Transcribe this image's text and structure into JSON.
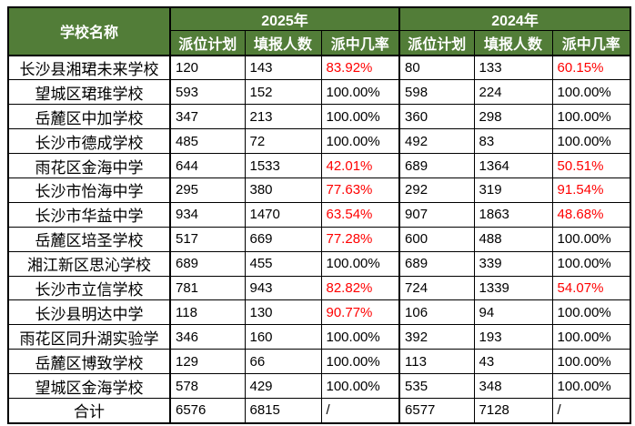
{
  "colors": {
    "header_bg": "#527d38",
    "header_text": "#ffffff",
    "highlight_red": "#ff0000",
    "cell_text": "#000000",
    "border": "#000000",
    "page_bg": "#ffffff"
  },
  "table": {
    "name_header": "学校名称",
    "year_groups": [
      {
        "label": "2025年",
        "columns": [
          "派位计划",
          "填报人数",
          "派中几率"
        ]
      },
      {
        "label": "2024年",
        "columns": [
          "派位计划",
          "填报人数",
          "派中几率"
        ]
      }
    ],
    "rows": [
      {
        "name": "长沙县湘珺未来学校",
        "cells": [
          {
            "v": "120"
          },
          {
            "v": "143"
          },
          {
            "v": "83.92%",
            "red": true
          },
          {
            "v": "80"
          },
          {
            "v": "133"
          },
          {
            "v": "60.15%",
            "red": true
          }
        ]
      },
      {
        "name": "望城区珺琟学校",
        "cells": [
          {
            "v": "593"
          },
          {
            "v": "152"
          },
          {
            "v": "100.00%"
          },
          {
            "v": "598"
          },
          {
            "v": "224"
          },
          {
            "v": "100.00%"
          }
        ]
      },
      {
        "name": "岳麓区中加学校",
        "cells": [
          {
            "v": "347"
          },
          {
            "v": "213"
          },
          {
            "v": "100.00%"
          },
          {
            "v": "360"
          },
          {
            "v": "298"
          },
          {
            "v": "100.00%"
          }
        ]
      },
      {
        "name": "长沙市德成学校",
        "cells": [
          {
            "v": "485"
          },
          {
            "v": "72"
          },
          {
            "v": "100.00%"
          },
          {
            "v": "492"
          },
          {
            "v": "83"
          },
          {
            "v": "100.00%"
          }
        ]
      },
      {
        "name": "雨花区金海中学",
        "cells": [
          {
            "v": "644"
          },
          {
            "v": "1533"
          },
          {
            "v": "42.01%",
            "red": true
          },
          {
            "v": "689"
          },
          {
            "v": "1364"
          },
          {
            "v": "50.51%",
            "red": true
          }
        ]
      },
      {
        "name": "长沙市怡海中学",
        "cells": [
          {
            "v": "295"
          },
          {
            "v": "380"
          },
          {
            "v": "77.63%",
            "red": true
          },
          {
            "v": "292"
          },
          {
            "v": "319"
          },
          {
            "v": "91.54%",
            "red": true
          }
        ]
      },
      {
        "name": "长沙市华益中学",
        "cells": [
          {
            "v": "934"
          },
          {
            "v": "1470"
          },
          {
            "v": "63.54%",
            "red": true
          },
          {
            "v": "907"
          },
          {
            "v": "1863"
          },
          {
            "v": "48.68%",
            "red": true
          }
        ]
      },
      {
        "name": "岳麓区培圣学校",
        "cells": [
          {
            "v": "517"
          },
          {
            "v": "669"
          },
          {
            "v": "77.28%",
            "red": true
          },
          {
            "v": "600"
          },
          {
            "v": "488"
          },
          {
            "v": "100.00%"
          }
        ]
      },
      {
        "name": "湘江新区思沁学校",
        "cells": [
          {
            "v": "689"
          },
          {
            "v": "455"
          },
          {
            "v": "100.00%"
          },
          {
            "v": "689"
          },
          {
            "v": "339"
          },
          {
            "v": "100.00%"
          }
        ]
      },
      {
        "name": "长沙市立信学校",
        "cells": [
          {
            "v": "781"
          },
          {
            "v": "943"
          },
          {
            "v": "82.82%",
            "red": true
          },
          {
            "v": "724"
          },
          {
            "v": "1339"
          },
          {
            "v": "54.07%",
            "red": true
          }
        ]
      },
      {
        "name": "长沙县明达中学",
        "cells": [
          {
            "v": "118"
          },
          {
            "v": "130"
          },
          {
            "v": "90.77%",
            "red": true
          },
          {
            "v": "106"
          },
          {
            "v": "94"
          },
          {
            "v": "100.00%"
          }
        ]
      },
      {
        "name": "雨花区同升湖实验学",
        "cells": [
          {
            "v": "346"
          },
          {
            "v": "160"
          },
          {
            "v": "100.00%"
          },
          {
            "v": "392"
          },
          {
            "v": "193"
          },
          {
            "v": "100.00%"
          }
        ]
      },
      {
        "name": "岳麓区博致学校",
        "cells": [
          {
            "v": "129"
          },
          {
            "v": "66"
          },
          {
            "v": "100.00%"
          },
          {
            "v": "113"
          },
          {
            "v": "43"
          },
          {
            "v": "100.00%"
          }
        ]
      },
      {
        "name": "望城区金海学校",
        "cells": [
          {
            "v": "578"
          },
          {
            "v": "429"
          },
          {
            "v": "100.00%"
          },
          {
            "v": "535"
          },
          {
            "v": "348"
          },
          {
            "v": "100.00%"
          }
        ]
      }
    ],
    "total_row": {
      "name": "合计",
      "cells": [
        {
          "v": "6576"
        },
        {
          "v": "6815"
        },
        {
          "v": "/"
        },
        {
          "v": "6577"
        },
        {
          "v": "7128"
        },
        {
          "v": "/"
        }
      ]
    }
  }
}
